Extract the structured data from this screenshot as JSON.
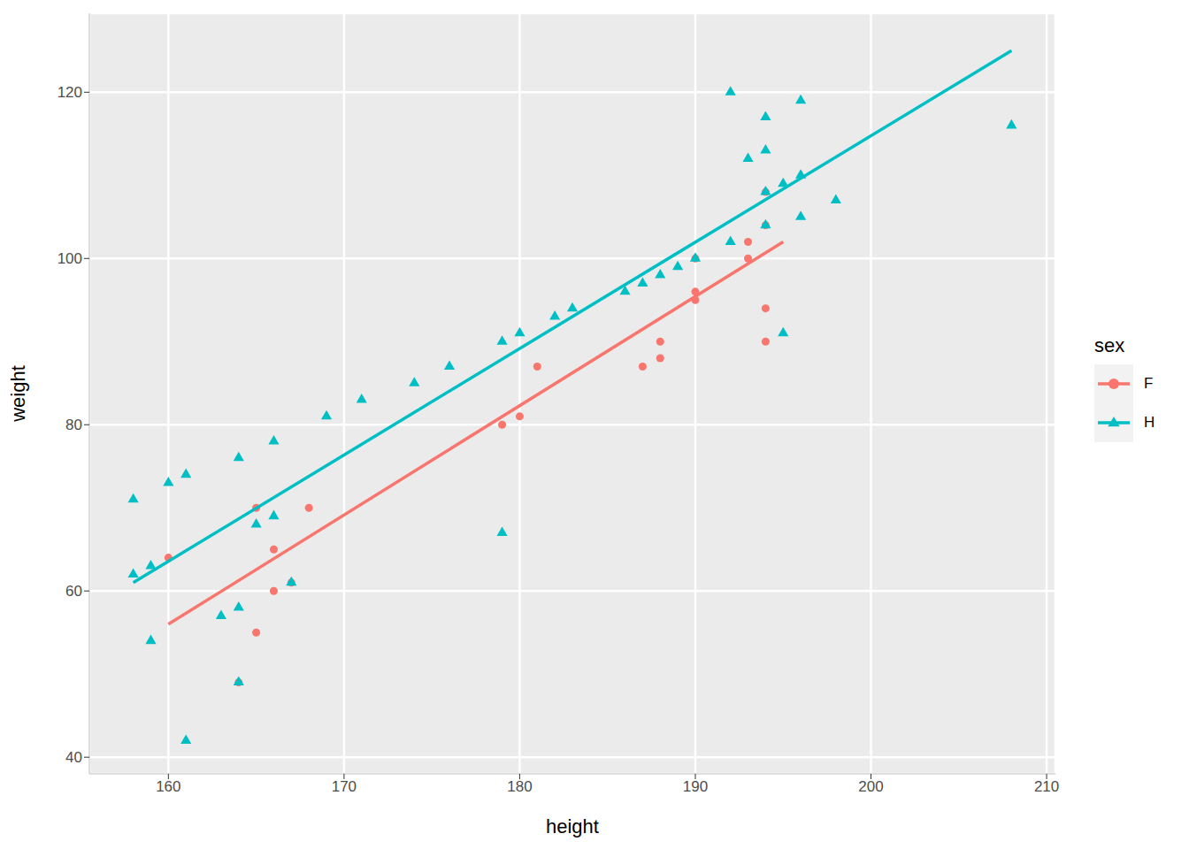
{
  "chart_data": {
    "type": "scatter",
    "x_label": "height",
    "y_label": "weight",
    "xlim": [
      155.5,
      210.5
    ],
    "ylim": [
      38,
      129.5
    ],
    "xticks": [
      160,
      170,
      180,
      190,
      200,
      210
    ],
    "yticks": [
      40,
      60,
      80,
      100,
      120
    ],
    "grid": true,
    "legend": "right",
    "legend_title": "sex",
    "series": [
      {
        "name": "F",
        "color": "#F8766D",
        "marker": "circle",
        "x": [
          160,
          165,
          165,
          166,
          166,
          168,
          167,
          164,
          179,
          180,
          181,
          187,
          188,
          188,
          190,
          190,
          190,
          193,
          193,
          194,
          194,
          194,
          194
        ],
        "values": [
          64,
          70,
          55,
          65,
          60,
          70,
          61,
          49,
          80,
          81,
          87,
          87,
          90,
          88,
          100,
          96,
          95,
          102,
          100,
          108,
          104,
          94,
          90
        ],
        "fit": {
          "x": [
            160,
            195
          ],
          "values": [
            56,
            102
          ]
        }
      },
      {
        "name": "H",
        "color": "#00BFC4",
        "marker": "triangle",
        "x": [
          158,
          158,
          159,
          159,
          160,
          161,
          161,
          163,
          164,
          164,
          164,
          165,
          166,
          166,
          167,
          169,
          171,
          174,
          176,
          179,
          179,
          180,
          182,
          183,
          186,
          187,
          188,
          189,
          190,
          192,
          192,
          193,
          194,
          194,
          194,
          194,
          195,
          195,
          196,
          196,
          196,
          198,
          208
        ],
        "values": [
          71,
          62,
          63,
          54,
          73,
          74,
          42,
          57,
          76,
          58,
          49,
          68,
          78,
          69,
          61,
          81,
          83,
          85,
          87,
          90,
          67,
          91,
          93,
          94,
          96,
          97,
          98,
          99,
          100,
          120,
          102,
          112,
          117,
          113,
          108,
          104,
          109,
          91,
          119,
          110,
          105,
          107,
          116
        ],
        "fit": {
          "x": [
            158,
            208
          ],
          "values": [
            61,
            125
          ]
        }
      }
    ]
  }
}
